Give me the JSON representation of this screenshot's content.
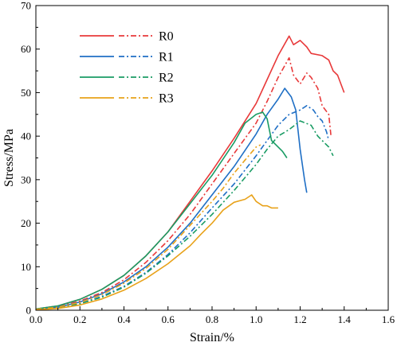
{
  "chart_data": {
    "type": "line",
    "xlabel": "Strain/%",
    "ylabel": "Stress/MPa",
    "xlim": [
      0.0,
      1.6
    ],
    "ylim": [
      0,
      70
    ],
    "xticks": [
      "0.0",
      "0.2",
      "0.4",
      "0.6",
      "0.8",
      "1.0",
      "1.2",
      "1.4",
      "1.6"
    ],
    "yticks": [
      "0",
      "10",
      "20",
      "30",
      "40",
      "50",
      "60",
      "70"
    ],
    "grid": false,
    "legend_position": "top-left",
    "line_styles": [
      "solid",
      "dash-dot"
    ],
    "series": [
      {
        "name": "R0",
        "color": "#e8393a",
        "curves": [
          [
            [
              0.0,
              0.3
            ],
            [
              0.1,
              1.0
            ],
            [
              0.2,
              2.5
            ],
            [
              0.3,
              4.8
            ],
            [
              0.4,
              8.0
            ],
            [
              0.5,
              12.5
            ],
            [
              0.6,
              18.0
            ],
            [
              0.7,
              25.0
            ],
            [
              0.8,
              32.0
            ],
            [
              0.9,
              39.5
            ],
            [
              1.0,
              47.5
            ],
            [
              1.05,
              53.0
            ],
            [
              1.1,
              58.5
            ],
            [
              1.15,
              63.0
            ],
            [
              1.17,
              61.0
            ],
            [
              1.2,
              62.0
            ],
            [
              1.23,
              60.5
            ],
            [
              1.25,
              59.0
            ],
            [
              1.3,
              58.5
            ],
            [
              1.33,
              57.5
            ],
            [
              1.35,
              55.0
            ],
            [
              1.37,
              54.0
            ],
            [
              1.4,
              50.0
            ]
          ],
          [
            [
              0.0,
              0.2
            ],
            [
              0.1,
              0.8
            ],
            [
              0.2,
              2.1
            ],
            [
              0.3,
              4.1
            ],
            [
              0.4,
              7.0
            ],
            [
              0.5,
              11.0
            ],
            [
              0.6,
              16.0
            ],
            [
              0.7,
              22.0
            ],
            [
              0.8,
              29.0
            ],
            [
              0.9,
              36.0
            ],
            [
              1.0,
              43.0
            ],
            [
              1.05,
              48.0
            ],
            [
              1.1,
              53.5
            ],
            [
              1.15,
              58.0
            ],
            [
              1.17,
              54.0
            ],
            [
              1.2,
              52.0
            ],
            [
              1.23,
              54.5
            ],
            [
              1.25,
              53.5
            ],
            [
              1.28,
              51.0
            ],
            [
              1.3,
              47.0
            ],
            [
              1.33,
              45.0
            ],
            [
              1.34,
              40.0
            ]
          ]
        ]
      },
      {
        "name": "R1",
        "color": "#1f6fc5",
        "curves": [
          [
            [
              0.0,
              0.2
            ],
            [
              0.1,
              0.7
            ],
            [
              0.2,
              1.9
            ],
            [
              0.3,
              3.8
            ],
            [
              0.4,
              6.5
            ],
            [
              0.5,
              10.0
            ],
            [
              0.6,
              14.5
            ],
            [
              0.7,
              20.0
            ],
            [
              0.8,
              26.5
            ],
            [
              0.9,
              33.0
            ],
            [
              1.0,
              40.5
            ],
            [
              1.05,
              45.0
            ],
            [
              1.1,
              48.5
            ],
            [
              1.13,
              51.0
            ],
            [
              1.16,
              49.0
            ],
            [
              1.18,
              46.0
            ],
            [
              1.2,
              37.0
            ],
            [
              1.22,
              30.0
            ],
            [
              1.23,
              27.0
            ]
          ],
          [
            [
              0.0,
              0.1
            ],
            [
              0.1,
              0.5
            ],
            [
              0.2,
              1.5
            ],
            [
              0.3,
              3.2
            ],
            [
              0.4,
              5.5
            ],
            [
              0.5,
              8.7
            ],
            [
              0.6,
              12.8
            ],
            [
              0.7,
              17.8
            ],
            [
              0.8,
              23.5
            ],
            [
              0.9,
              29.0
            ],
            [
              1.0,
              35.5
            ],
            [
              1.05,
              39.0
            ],
            [
              1.1,
              42.5
            ],
            [
              1.15,
              45.0
            ],
            [
              1.2,
              46.0
            ],
            [
              1.23,
              47.0
            ],
            [
              1.26,
              46.0
            ],
            [
              1.28,
              44.5
            ],
            [
              1.3,
              43.5
            ],
            [
              1.32,
              41.0
            ],
            [
              1.33,
              39.0
            ]
          ]
        ]
      },
      {
        "name": "R2",
        "color": "#1a9c64",
        "curves": [
          [
            [
              0.0,
              0.3
            ],
            [
              0.1,
              1.0
            ],
            [
              0.2,
              2.5
            ],
            [
              0.3,
              4.8
            ],
            [
              0.4,
              8.0
            ],
            [
              0.5,
              12.5
            ],
            [
              0.6,
              18.0
            ],
            [
              0.7,
              24.5
            ],
            [
              0.8,
              31.0
            ],
            [
              0.9,
              38.5
            ],
            [
              0.95,
              43.0
            ],
            [
              1.0,
              45.0
            ],
            [
              1.03,
              45.5
            ],
            [
              1.05,
              44.0
            ],
            [
              1.07,
              39.0
            ],
            [
              1.1,
              37.5
            ],
            [
              1.12,
              36.5
            ],
            [
              1.14,
              35.0
            ]
          ],
          [
            [
              0.0,
              0.1
            ],
            [
              0.1,
              0.5
            ],
            [
              0.2,
              1.5
            ],
            [
              0.3,
              3.0
            ],
            [
              0.4,
              5.3
            ],
            [
              0.5,
              8.5
            ],
            [
              0.6,
              12.5
            ],
            [
              0.7,
              17.0
            ],
            [
              0.8,
              22.0
            ],
            [
              0.9,
              27.5
            ],
            [
              1.0,
              33.5
            ],
            [
              1.05,
              37.0
            ],
            [
              1.1,
              40.0
            ],
            [
              1.15,
              41.5
            ],
            [
              1.2,
              43.5
            ],
            [
              1.25,
              42.5
            ],
            [
              1.28,
              40.0
            ],
            [
              1.3,
              39.0
            ],
            [
              1.33,
              37.5
            ],
            [
              1.35,
              35.5
            ]
          ]
        ]
      },
      {
        "name": "R3",
        "color": "#e8a21a",
        "curves": [
          [
            [
              0.0,
              0.1
            ],
            [
              0.1,
              0.4
            ],
            [
              0.2,
              1.2
            ],
            [
              0.3,
              2.6
            ],
            [
              0.4,
              4.6
            ],
            [
              0.5,
              7.3
            ],
            [
              0.6,
              10.7
            ],
            [
              0.7,
              14.8
            ],
            [
              0.75,
              17.5
            ],
            [
              0.8,
              20.0
            ],
            [
              0.85,
              23.0
            ],
            [
              0.9,
              24.8
            ],
            [
              0.95,
              25.5
            ],
            [
              0.98,
              26.5
            ],
            [
              1.0,
              25.0
            ],
            [
              1.03,
              24.0
            ],
            [
              1.05,
              24.0
            ],
            [
              1.07,
              23.5
            ],
            [
              1.1,
              23.5
            ]
          ],
          [
            [
              0.0,
              0.2
            ],
            [
              0.1,
              0.7
            ],
            [
              0.2,
              1.8
            ],
            [
              0.3,
              3.6
            ],
            [
              0.4,
              6.2
            ],
            [
              0.5,
              9.6
            ],
            [
              0.6,
              14.0
            ],
            [
              0.7,
              19.5
            ],
            [
              0.8,
              25.0
            ],
            [
              0.85,
              28.0
            ],
            [
              0.9,
              31.5
            ],
            [
              0.95,
              34.5
            ],
            [
              1.0,
              37.5
            ],
            [
              1.02,
              38.0
            ]
          ]
        ]
      }
    ]
  }
}
